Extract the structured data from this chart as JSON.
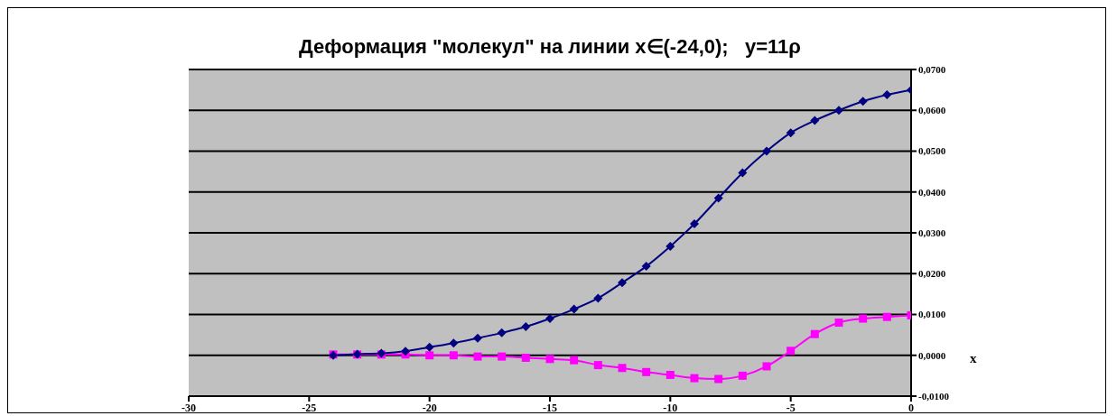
{
  "chart_data": {
    "type": "line",
    "title": "Деформация \"молекул\" на линии x∈(-24,0);   y=11ρ",
    "xlabel": "x",
    "x": [
      -24,
      -23,
      -22,
      -21,
      -20,
      -19,
      -18,
      -17,
      -16,
      -15,
      -14,
      -13,
      -12,
      -11,
      -10,
      -9,
      -8,
      -7,
      -6,
      -5,
      -4,
      -3,
      -2,
      -1,
      0
    ],
    "series": [
      {
        "color": "#000080",
        "marker": "diamond",
        "values": [
          0,
          0.0003,
          0.0005,
          0.001,
          0.002,
          0.003,
          0.0042,
          0.0055,
          0.007,
          0.009,
          0.0113,
          0.014,
          0.0178,
          0.0218,
          0.0267,
          0.0322,
          0.0385,
          0.0447,
          0.05,
          0.0545,
          0.0575,
          0.06,
          0.0622,
          0.0638,
          0.065
        ]
      },
      {
        "color": "#ff00ff",
        "marker": "square",
        "values": [
          0.0002,
          0.0002,
          0.0002,
          0.0002,
          0,
          0,
          -0.0003,
          -0.0003,
          -0.0006,
          -0.0009,
          -0.0012,
          -0.0024,
          -0.0031,
          -0.0041,
          -0.0048,
          -0.0056,
          -0.0058,
          -0.005,
          -0.0027,
          0.0011,
          0.0052,
          0.008,
          0.009,
          0.0094,
          0.0098
        ]
      }
    ],
    "xlim": [
      -30,
      0
    ],
    "xticks": [
      -30,
      -25,
      -20,
      -15,
      -10,
      -5,
      0
    ],
    "ylim": [
      -0.01,
      0.07
    ],
    "yticks": [
      {
        "value": -0.01,
        "label": "-0,0100"
      },
      {
        "value": 0,
        "label": "0,0000"
      },
      {
        "value": 0.01,
        "label": "0,0100"
      },
      {
        "value": 0.02,
        "label": "0,0200"
      },
      {
        "value": 0.03,
        "label": "0,0300"
      },
      {
        "value": 0.04,
        "label": "0,0400"
      },
      {
        "value": 0.05,
        "label": "0,0500"
      },
      {
        "value": 0.06,
        "label": "0,0600"
      },
      {
        "value": 0.07,
        "label": "0,0700"
      }
    ],
    "grid": "y",
    "legend": false,
    "line_style": "solid"
  }
}
